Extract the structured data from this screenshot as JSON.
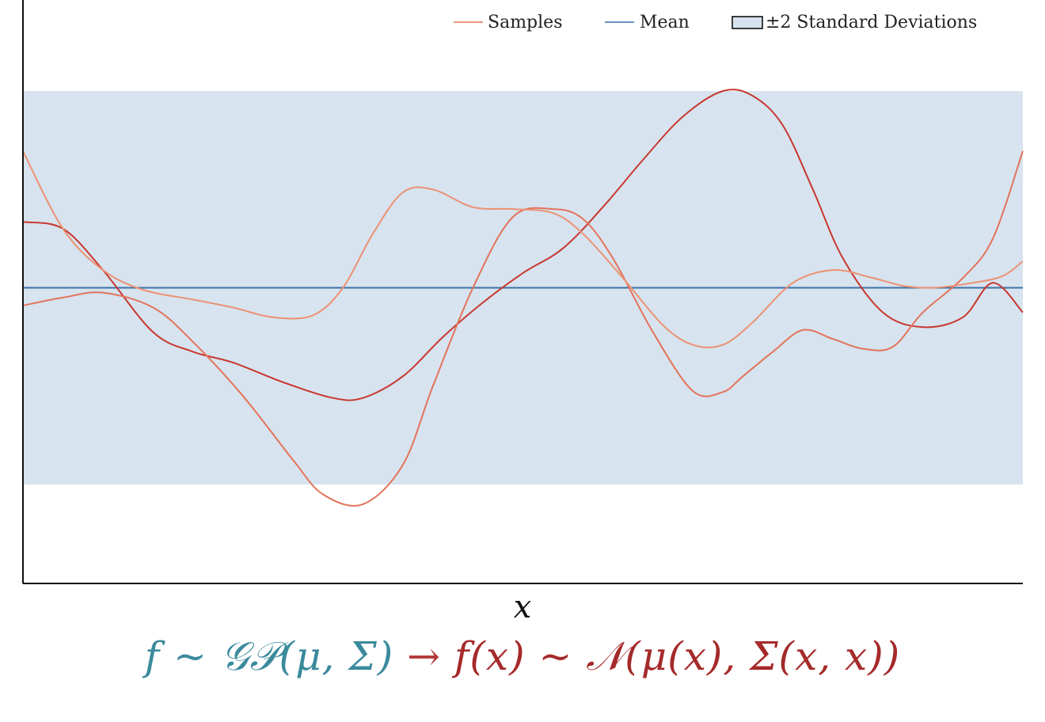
{
  "legend": {
    "samples_label": "Samples",
    "mean_label": "Mean",
    "band_label": "±2 Standard Deviations"
  },
  "formula": {
    "left": "f ~ 𝒢𝒫(μ, Σ)",
    "arrow": " → ",
    "right": "f(x) ~ 𝒩(μ(x), Σ(x, x))"
  },
  "colors": {
    "samples": "#e3735a",
    "sample_dark": "#c8372f",
    "mean": "#3b6fa8",
    "band": "#d7e3ee",
    "formula_left": "#3a8a9c",
    "formula_right": "#a52a2a"
  },
  "chart_data": {
    "type": "line",
    "xlabel": "x",
    "ylabel": "",
    "xlim": [
      0,
      1
    ],
    "ylim": [
      -3,
      3
    ],
    "band": {
      "lower": -2,
      "upper": 2
    },
    "mean": 0,
    "legend_position": "top-right",
    "grid": false,
    "series": [
      {
        "role": "sample",
        "color": "#c8372f",
        "x": [
          0,
          0.04,
          0.08,
          0.13,
          0.17,
          0.21,
          0.26,
          0.31,
          0.34,
          0.38,
          0.42,
          0.46,
          0.5,
          0.54,
          0.58,
          0.62,
          0.66,
          0.7,
          0.73,
          0.76,
          0.79,
          0.82,
          0.86,
          0.9,
          0.94,
          0.97,
          1
        ],
        "y": [
          0.67,
          0.6,
          0.18,
          -0.45,
          -0.65,
          -0.76,
          -0.96,
          -1.12,
          -1.12,
          -0.9,
          -0.5,
          -0.15,
          0.15,
          0.4,
          0.82,
          1.3,
          1.74,
          2.0,
          1.95,
          1.65,
          1.0,
          0.3,
          -0.25,
          -0.4,
          -0.3,
          0.05,
          -0.25
        ]
      },
      {
        "role": "sample",
        "color": "#e3735a",
        "x": [
          0,
          0.04,
          0.08,
          0.13,
          0.17,
          0.22,
          0.27,
          0.3,
          0.34,
          0.38,
          0.41,
          0.45,
          0.49,
          0.53,
          0.56,
          0.59,
          0.63,
          0.67,
          0.7,
          0.72,
          0.75,
          0.78,
          0.81,
          0.84,
          0.87,
          0.9,
          0.94,
          0.97,
          1
        ],
        "y": [
          -0.18,
          -0.1,
          -0.05,
          -0.2,
          -0.55,
          -1.1,
          -1.75,
          -2.1,
          -2.2,
          -1.8,
          -1.0,
          0.0,
          0.72,
          0.8,
          0.7,
          0.3,
          -0.45,
          -1.05,
          -1.06,
          -0.9,
          -0.65,
          -0.43,
          -0.52,
          -0.62,
          -0.6,
          -0.25,
          0.1,
          0.5,
          1.39
        ]
      },
      {
        "role": "sample",
        "color": "#ec9174",
        "x": [
          0,
          0.04,
          0.08,
          0.12,
          0.17,
          0.21,
          0.25,
          0.29,
          0.32,
          0.35,
          0.38,
          0.41,
          0.45,
          0.49,
          0.53,
          0.56,
          0.6,
          0.64,
          0.67,
          0.7,
          0.73,
          0.77,
          0.81,
          0.85,
          0.88,
          0.91,
          0.95,
          0.98,
          1
        ],
        "y": [
          1.39,
          0.6,
          0.18,
          -0.02,
          -0.12,
          -0.2,
          -0.3,
          -0.28,
          0.0,
          0.55,
          0.97,
          1.0,
          0.82,
          0.8,
          0.76,
          0.55,
          0.1,
          -0.38,
          -0.58,
          -0.58,
          -0.35,
          0.05,
          0.18,
          0.1,
          0.02,
          0.0,
          0.05,
          0.12,
          0.27
        ]
      }
    ]
  }
}
